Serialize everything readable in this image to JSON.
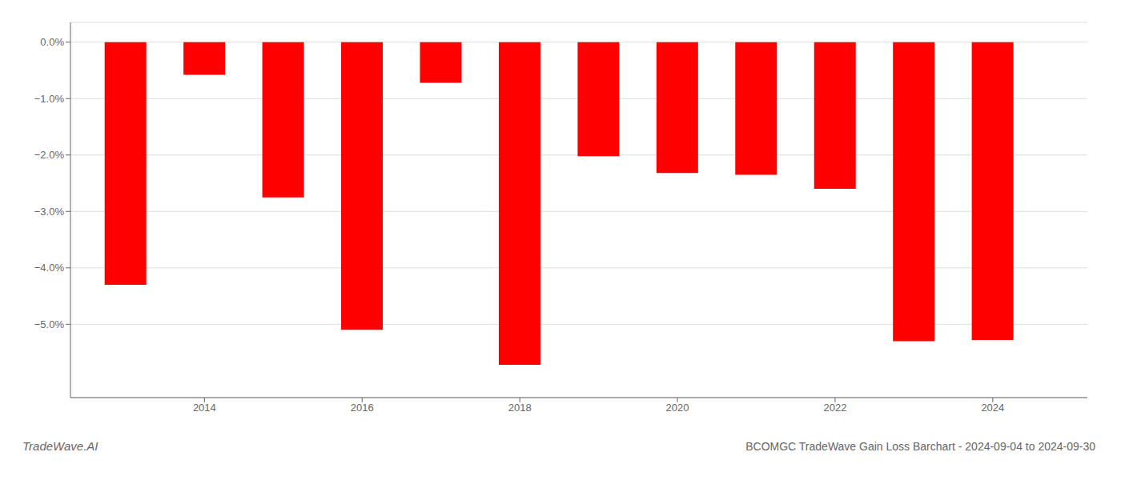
{
  "chart_data": {
    "type": "bar",
    "title": "BCOMGC TradeWave Gain Loss Barchart - 2024-09-04 to 2024-09-30",
    "annotations": [
      "TradeWave.AI"
    ],
    "x": [
      2013,
      2014,
      2015,
      2016,
      2017,
      2018,
      2019,
      2020,
      2021,
      2022,
      2023,
      2024
    ],
    "values": [
      -4.3,
      -0.58,
      -2.75,
      -5.1,
      -0.72,
      -5.72,
      -2.02,
      -2.32,
      -2.35,
      -2.6,
      -5.3,
      -5.28
    ],
    "color": "#ff0000",
    "xlim": [
      2012.3,
      2025.2
    ],
    "xticks": [
      2014,
      2016,
      2018,
      2020,
      2022,
      2024
    ],
    "ylim": [
      -6.3,
      0.35
    ],
    "yticks": [
      {
        "value": 0.0,
        "label": "0.0%"
      },
      {
        "value": -1.0,
        "label": "−1.0%"
      },
      {
        "value": -2.0,
        "label": "−2.0%"
      },
      {
        "value": -3.0,
        "label": "−3.0%"
      },
      {
        "value": -4.0,
        "label": "−4.0%"
      },
      {
        "value": -5.0,
        "label": "−5.0%"
      }
    ],
    "grid": true
  }
}
